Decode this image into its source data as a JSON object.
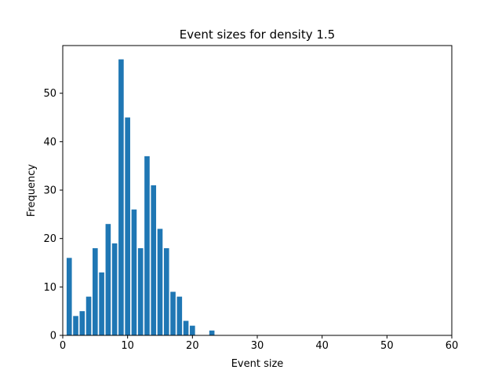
{
  "chart_data": {
    "type": "bar",
    "title": "Event sizes for density 1.5",
    "xlabel": "Event size",
    "ylabel": "Frequency",
    "xlim": [
      0,
      60
    ],
    "ylim": [
      0,
      59.85
    ],
    "xticks": [
      0,
      10,
      20,
      30,
      40,
      50,
      60
    ],
    "yticks": [
      0,
      10,
      20,
      30,
      40,
      50
    ],
    "bar_width": 0.8,
    "bar_color": "#1f77b4",
    "grid": false,
    "x": [
      1,
      2,
      3,
      4,
      5,
      6,
      7,
      8,
      9,
      10,
      11,
      12,
      13,
      14,
      15,
      16,
      17,
      18,
      19,
      20,
      23
    ],
    "values": [
      16,
      4,
      5,
      8,
      18,
      13,
      23,
      19,
      57,
      45,
      26,
      18,
      37,
      31,
      22,
      18,
      9,
      8,
      3,
      2,
      1
    ]
  }
}
